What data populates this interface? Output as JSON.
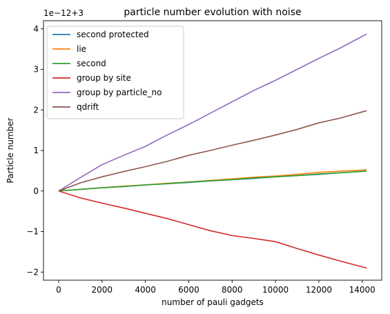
{
  "chart_data": {
    "type": "line",
    "title": "particle number evolution with noise",
    "xlabel": "number of pauli gadgets",
    "ylabel": "Particle number",
    "offset_label": "1e−12+3",
    "xlim": [
      -700,
      14900
    ],
    "ylim": [
      -2.2,
      4.2
    ],
    "xticks": [
      0,
      2000,
      4000,
      6000,
      8000,
      10000,
      12000,
      14000
    ],
    "yticks": [
      -2,
      -1,
      0,
      1,
      2,
      3,
      4
    ],
    "grid": false,
    "legend_position": "top-left",
    "series": [
      {
        "name": "second protected",
        "color": "#1f77b4",
        "x": [
          0,
          1000,
          2000,
          3000,
          4000,
          5000,
          6000,
          7000,
          8000,
          9000,
          10000,
          11000,
          12000,
          13000,
          14200
        ],
        "y": [
          0,
          0.04,
          0.08,
          0.11,
          0.15,
          0.18,
          0.21,
          0.25,
          0.28,
          0.31,
          0.35,
          0.38,
          0.41,
          0.45,
          0.49
        ]
      },
      {
        "name": "lie",
        "color": "#ff7f0e",
        "x": [
          0,
          1000,
          2000,
          3000,
          4000,
          5000,
          6000,
          7000,
          8000,
          9000,
          10000,
          11000,
          12000,
          13000,
          14200
        ],
        "y": [
          0,
          0.04,
          0.08,
          0.12,
          0.15,
          0.19,
          0.22,
          0.26,
          0.3,
          0.34,
          0.37,
          0.41,
          0.46,
          0.49,
          0.52
        ]
      },
      {
        "name": "second",
        "color": "#2ca02c",
        "x": [
          0,
          1000,
          2000,
          3000,
          4000,
          5000,
          6000,
          7000,
          8000,
          9000,
          10000,
          11000,
          12000,
          13000,
          14200
        ],
        "y": [
          0,
          0.04,
          0.08,
          0.11,
          0.15,
          0.18,
          0.22,
          0.25,
          0.28,
          0.32,
          0.35,
          0.38,
          0.42,
          0.45,
          0.49
        ]
      },
      {
        "name": "group by site",
        "color": "#d62728",
        "x": [
          0,
          1000,
          2000,
          3000,
          4000,
          5000,
          6000,
          7000,
          8000,
          9000,
          10000,
          11000,
          12000,
          13000,
          14200
        ],
        "y": [
          0,
          -0.17,
          -0.3,
          -0.42,
          -0.55,
          -0.68,
          -0.83,
          -0.98,
          -1.1,
          -1.17,
          -1.25,
          -1.42,
          -1.58,
          -1.73,
          -1.9
        ]
      },
      {
        "name": "group by particle_no",
        "color": "#9467bd",
        "x": [
          0,
          1000,
          2000,
          3000,
          4000,
          5000,
          6000,
          7000,
          8000,
          9000,
          10000,
          11000,
          12000,
          13000,
          14200
        ],
        "y": [
          0,
          0.33,
          0.65,
          0.88,
          1.1,
          1.38,
          1.64,
          1.92,
          2.2,
          2.48,
          2.73,
          3.0,
          3.27,
          3.53,
          3.87
        ]
      },
      {
        "name": "qdrift",
        "color": "#8c564b",
        "x": [
          0,
          1000,
          2000,
          3000,
          4000,
          5000,
          6000,
          7000,
          8000,
          9000,
          10000,
          11000,
          12000,
          13000,
          14200
        ],
        "y": [
          0,
          0.2,
          0.35,
          0.48,
          0.6,
          0.73,
          0.88,
          1.0,
          1.13,
          1.25,
          1.38,
          1.52,
          1.68,
          1.8,
          1.98
        ]
      }
    ]
  }
}
